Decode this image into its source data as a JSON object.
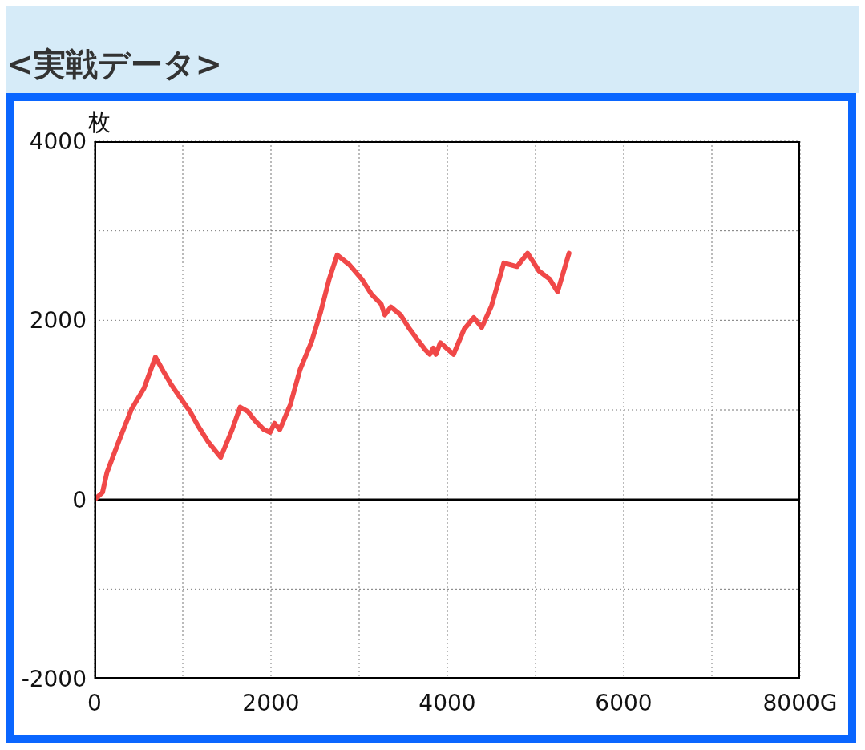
{
  "chart_data": {
    "type": "line",
    "title": "<実戦データ>",
    "ylabel": "枚",
    "x": [
      0,
      90,
      140,
      290,
      420,
      560,
      690,
      780,
      870,
      990,
      1090,
      1180,
      1290,
      1430,
      1560,
      1650,
      1740,
      1810,
      1920,
      1990,
      2040,
      2100,
      2220,
      2330,
      2460,
      2560,
      2660,
      2750,
      2890,
      3030,
      3140,
      3250,
      3290,
      3360,
      3470,
      3560,
      3650,
      3750,
      3800,
      3840,
      3870,
      3920,
      4070,
      4190,
      4300,
      4390,
      4500,
      4640,
      4790,
      4910,
      5040,
      5160,
      5250,
      5380
    ],
    "series": [
      {
        "color": "#f04848",
        "values": [
          0,
          80,
          300,
          690,
          1010,
          1240,
          1590,
          1430,
          1280,
          1110,
          970,
          810,
          640,
          470,
          780,
          1030,
          980,
          890,
          780,
          750,
          850,
          780,
          1060,
          1450,
          1760,
          2080,
          2460,
          2730,
          2620,
          2460,
          2290,
          2180,
          2060,
          2150,
          2060,
          1920,
          1800,
          1670,
          1620,
          1690,
          1620,
          1750,
          1620,
          1900,
          2030,
          1920,
          2160,
          2640,
          2600,
          2750,
          2550,
          2460,
          2320,
          2750
        ]
      }
    ],
    "xlim": [
      0,
      8000
    ],
    "xticks": [
      0,
      {
        "value": 1000,
        "label": null
      },
      2000,
      {
        "value": 3000,
        "label": null
      },
      4000,
      {
        "value": 5000,
        "label": null
      },
      6000,
      {
        "value": 7000,
        "label": null
      },
      {
        "value": 8000,
        "label": "8000G"
      }
    ],
    "ylim": [
      -2000,
      4000
    ],
    "yticks": [
      -2000,
      {
        "value": -1000,
        "label": null
      },
      0,
      {
        "value": 1000,
        "label": null
      },
      2000,
      {
        "value": 3000,
        "label": null
      },
      4000
    ],
    "grid": true,
    "marker": "none",
    "line_style": "solid",
    "ref_lines": [
      {
        "axis": "y",
        "value": 0,
        "color": "#000000",
        "line_style": "solid"
      }
    ]
  }
}
